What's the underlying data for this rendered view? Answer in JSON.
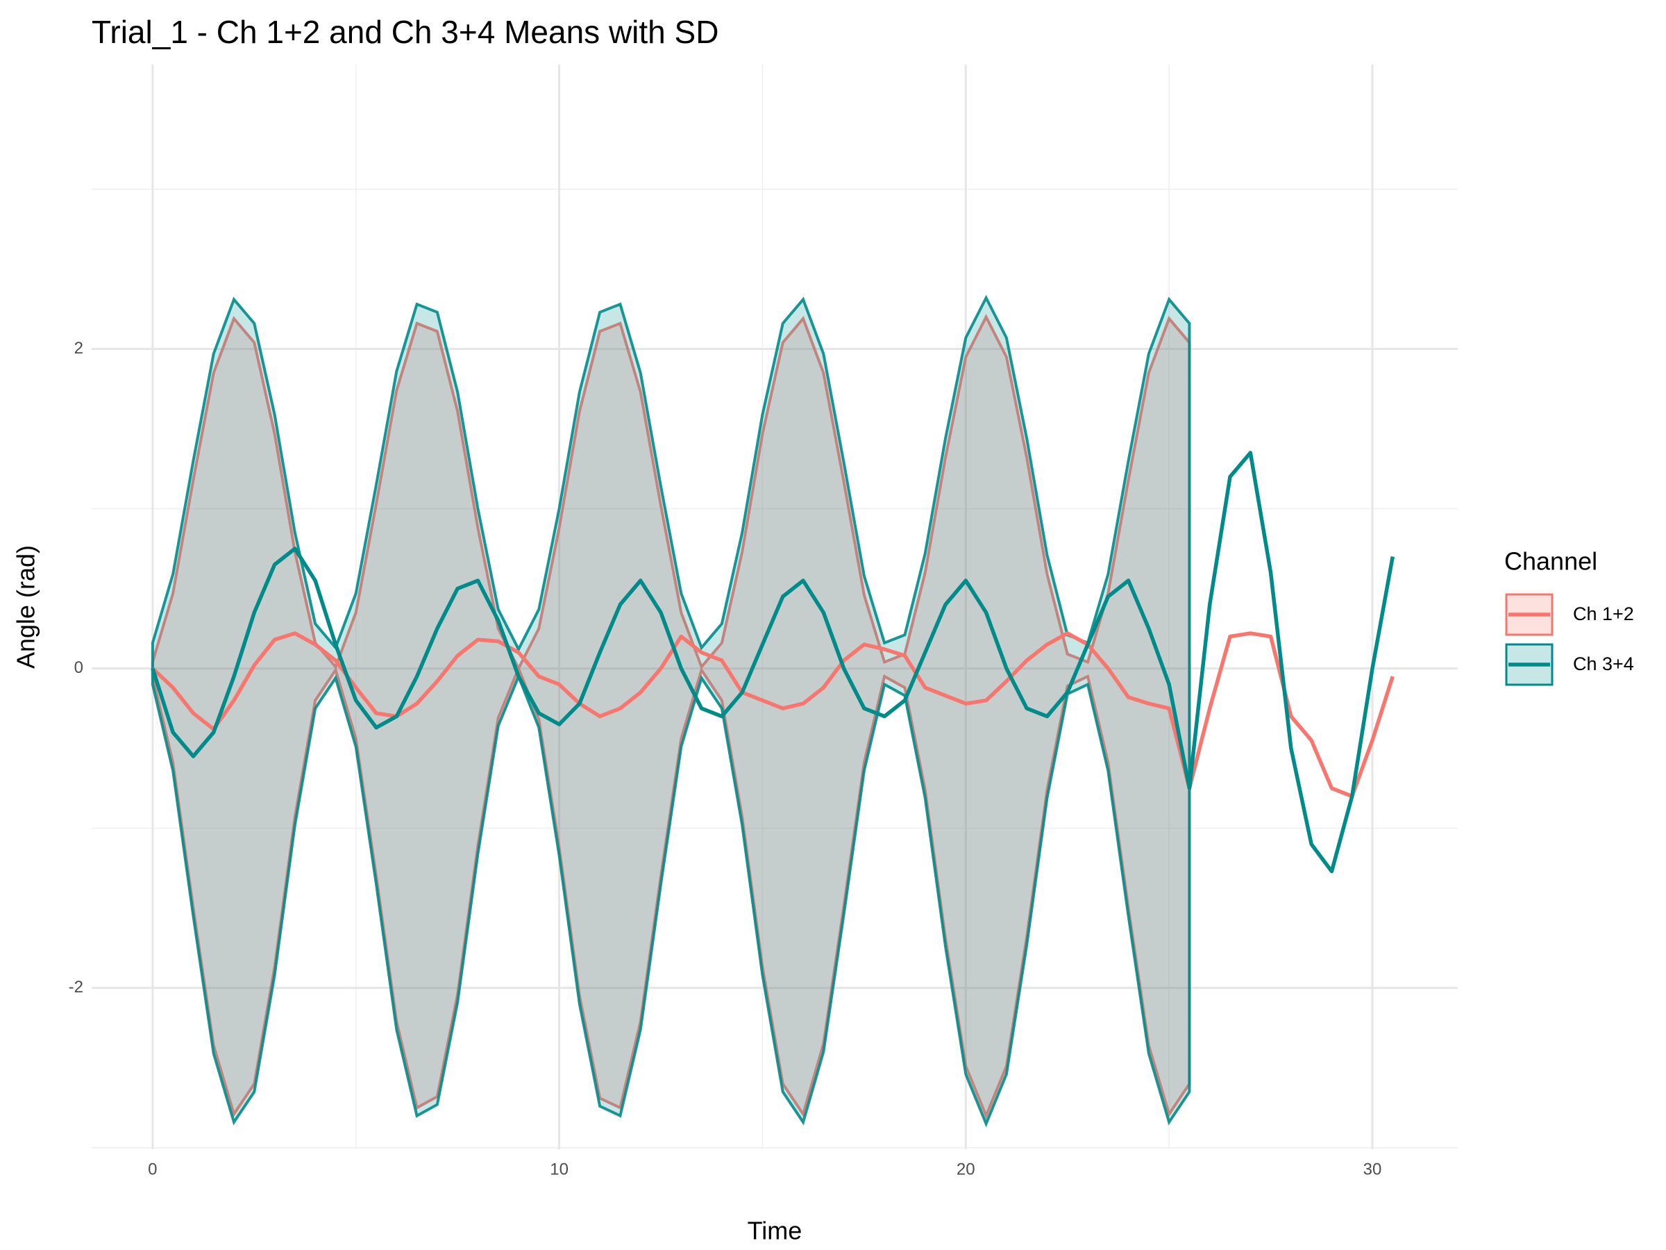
{
  "chart_data": {
    "type": "line",
    "title": "Trial_1 - Ch 1+2 and Ch 3+4 Means with SD",
    "xlabel": "Time",
    "ylabel": "Angle (rad)",
    "legend_title": "Channel",
    "legend": "right",
    "grid": true,
    "xlim": [
      -1.5,
      32.1
    ],
    "ylim": [
      -3.01,
      3.78
    ],
    "xticks": [
      0,
      10,
      20,
      30
    ],
    "yticks": [
      -2,
      0,
      2
    ],
    "x_minor_grid": [
      5,
      15,
      25
    ],
    "y_minor_grid": [
      -3,
      -1,
      1,
      3
    ],
    "x": [
      0,
      0.5,
      1,
      1.5,
      2,
      2.5,
      3,
      3.5,
      4,
      4.5,
      5,
      5.5,
      6,
      6.5,
      7,
      7.5,
      8,
      8.5,
      9,
      9.5,
      10,
      10.5,
      11,
      11.5,
      12,
      12.5,
      13,
      13.5,
      14,
      14.5,
      15,
      15.5,
      16,
      16.5,
      17,
      17.5,
      18,
      18.5,
      19,
      19.5,
      20,
      20.5,
      21,
      21.5,
      22,
      22.5,
      23,
      23.5,
      24,
      24.5,
      25,
      25.5,
      26,
      26.5,
      27,
      27.5,
      28,
      28.5,
      29,
      29.5,
      30,
      30.5
    ],
    "series": [
      {
        "name": "Ch 1+2",
        "color": "#F8766D",
        "values": [
          0,
          -0.12,
          -0.28,
          -0.38,
          -0.2,
          0.02,
          0.18,
          0.22,
          0.15,
          0.05,
          -0.12,
          -0.28,
          -0.3,
          -0.22,
          -0.08,
          0.08,
          0.18,
          0.17,
          0.1,
          -0.05,
          -0.1,
          -0.22,
          -0.3,
          -0.25,
          -0.15,
          0.0,
          0.2,
          0.1,
          0.05,
          -0.15,
          -0.2,
          -0.25,
          -0.22,
          -0.12,
          0.05,
          0.15,
          0.12,
          0.08,
          -0.12,
          -0.17,
          -0.22,
          -0.2,
          -0.08,
          0.05,
          0.15,
          0.22,
          0.15,
          0.0,
          -0.18,
          -0.22,
          -0.25,
          -0.75,
          -0.25,
          0.2,
          0.22,
          0.2,
          -0.3,
          -0.45,
          -0.75,
          -0.8,
          -0.45,
          -0.05
        ],
        "ribbon_upper": [
          0.04,
          0.47,
          1.18,
          1.85,
          2.19,
          2.04,
          1.47,
          0.73,
          0.16,
          0.01,
          0.35,
          1.03,
          1.74,
          2.16,
          2.11,
          1.61,
          0.88,
          0.25,
          0.0,
          0.25,
          0.88,
          1.61,
          2.11,
          2.16,
          1.73,
          1.02,
          0.35,
          0.01,
          0.16,
          0.73,
          1.47,
          2.04,
          2.19,
          1.85,
          1.17,
          0.46,
          0.04,
          0.09,
          0.6,
          1.32,
          1.95,
          2.2,
          1.95,
          1.32,
          0.59,
          0.09,
          0.04,
          0.47,
          1.18,
          1.85,
          2.19,
          2.04,
          null,
          null,
          null,
          null,
          null,
          null,
          null,
          null,
          null,
          null
        ],
        "ribbon_lower": [
          -0.05,
          -0.59,
          -1.5,
          -2.36,
          -2.79,
          -2.6,
          -1.87,
          -0.93,
          -0.2,
          -0.01,
          -0.44,
          -1.3,
          -2.21,
          -2.75,
          -2.68,
          -2.04,
          -1.11,
          -0.31,
          0.0,
          -0.32,
          -1.12,
          -2.05,
          -2.69,
          -2.75,
          -2.21,
          -1.3,
          -0.44,
          -0.01,
          -0.2,
          -0.93,
          -1.87,
          -2.6,
          -2.79,
          -2.35,
          -1.49,
          -0.59,
          -0.05,
          -0.12,
          -0.76,
          -1.69,
          -2.49,
          -2.8,
          -2.49,
          -1.68,
          -0.76,
          -0.11,
          -0.05,
          -0.59,
          -1.5,
          -2.36,
          -2.79,
          -2.6,
          null,
          null,
          null,
          null,
          null,
          null,
          null,
          null,
          null,
          null
        ]
      },
      {
        "name": "Ch 3+4",
        "color": "#008B8B",
        "values": [
          0,
          -0.4,
          -0.55,
          -0.4,
          -0.05,
          0.35,
          0.65,
          0.75,
          0.55,
          0.15,
          -0.2,
          -0.37,
          -0.3,
          -0.05,
          0.25,
          0.5,
          0.55,
          0.3,
          -0.05,
          -0.28,
          -0.35,
          -0.22,
          0.1,
          0.4,
          0.55,
          0.35,
          0.0,
          -0.25,
          -0.3,
          -0.15,
          0.15,
          0.45,
          0.55,
          0.35,
          0.0,
          -0.25,
          -0.3,
          -0.2,
          0.1,
          0.4,
          0.55,
          0.35,
          0.0,
          -0.25,
          -0.3,
          -0.15,
          0.15,
          0.45,
          0.55,
          0.25,
          -0.1,
          -0.75,
          0.4,
          1.2,
          1.35,
          0.6,
          -0.5,
          -1.1,
          -1.27,
          -0.8,
          0.0,
          0.7
        ],
        "ribbon_upper": [
          0.16,
          0.59,
          1.3,
          1.97,
          2.31,
          2.16,
          1.59,
          0.85,
          0.28,
          0.13,
          0.47,
          1.15,
          1.86,
          2.28,
          2.23,
          1.73,
          1.0,
          0.37,
          0.12,
          0.37,
          1.0,
          1.73,
          2.23,
          2.28,
          1.85,
          1.14,
          0.47,
          0.13,
          0.28,
          0.85,
          1.59,
          2.16,
          2.31,
          1.97,
          1.29,
          0.58,
          0.16,
          0.21,
          0.72,
          1.44,
          2.07,
          2.32,
          2.07,
          1.44,
          0.71,
          0.21,
          0.16,
          0.59,
          1.3,
          1.97,
          2.31,
          2.16,
          null,
          null,
          null,
          null,
          null,
          null,
          null,
          null,
          null,
          null
        ],
        "ribbon_lower": [
          -0.1,
          -0.64,
          -1.55,
          -2.41,
          -2.84,
          -2.65,
          -1.92,
          -0.98,
          -0.25,
          -0.06,
          -0.49,
          -1.35,
          -2.26,
          -2.8,
          -2.73,
          -2.09,
          -1.16,
          -0.36,
          -0.05,
          -0.37,
          -1.17,
          -2.1,
          -2.74,
          -2.8,
          -2.26,
          -1.35,
          -0.49,
          -0.06,
          -0.25,
          -0.98,
          -1.92,
          -2.65,
          -2.84,
          -2.4,
          -1.54,
          -0.64,
          -0.1,
          -0.17,
          -0.81,
          -1.74,
          -2.54,
          -2.85,
          -2.54,
          -1.73,
          -0.81,
          -0.16,
          -0.1,
          -0.64,
          -1.55,
          -2.41,
          -2.84,
          -2.65,
          null,
          null,
          null,
          null,
          null,
          null,
          null,
          null,
          null,
          null
        ]
      }
    ]
  }
}
